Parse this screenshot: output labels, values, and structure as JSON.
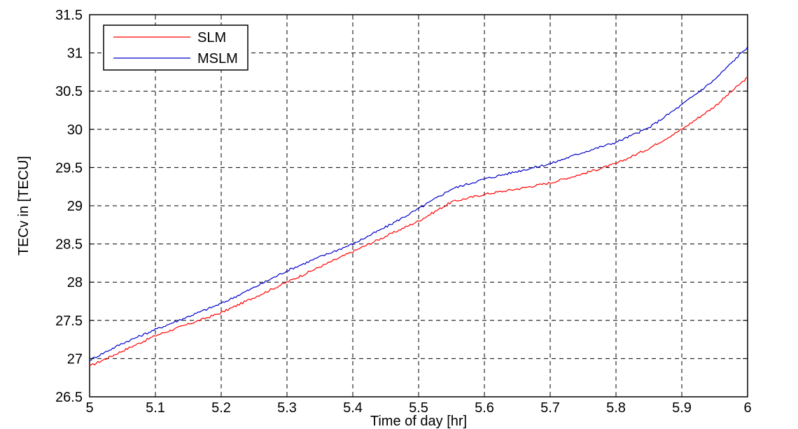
{
  "chart_data": {
    "type": "line",
    "title": "",
    "xlabel": "Time of day   [hr]",
    "ylabel": "TECv in [TECU]",
    "xlim": [
      5,
      6
    ],
    "ylim": [
      26.5,
      31.5
    ],
    "x_ticks": [
      5,
      5.1,
      5.2,
      5.3,
      5.4,
      5.5,
      5.6,
      5.7,
      5.8,
      5.9,
      6
    ],
    "x_tick_labels": [
      "5",
      "5.1",
      "5.2",
      "5.3",
      "5.4",
      "5.5",
      "5.6",
      "5.7",
      "5.8",
      "5.9",
      "6"
    ],
    "y_ticks": [
      26.5,
      27,
      27.5,
      28,
      28.5,
      29,
      29.5,
      30,
      30.5,
      31,
      31.5
    ],
    "y_tick_labels": [
      "26.5",
      "27",
      "27.5",
      "28",
      "28.5",
      "29",
      "29.5",
      "30",
      "30.5",
      "31",
      "31.5"
    ],
    "grid": true,
    "legend_position": "top-left",
    "series": [
      {
        "name": "SLM",
        "color": "#ff0000",
        "x": [
          5.0,
          5.05,
          5.1,
          5.15,
          5.2,
          5.25,
          5.3,
          5.35,
          5.4,
          5.45,
          5.5,
          5.55,
          5.6,
          5.65,
          5.7,
          5.75,
          5.8,
          5.85,
          5.9,
          5.95,
          6.0
        ],
        "y": [
          26.9,
          27.1,
          27.3,
          27.45,
          27.6,
          27.8,
          28.0,
          28.2,
          28.4,
          28.6,
          28.8,
          29.05,
          29.15,
          29.22,
          29.3,
          29.42,
          29.55,
          29.75,
          30.0,
          30.3,
          30.68
        ]
      },
      {
        "name": "MSLM",
        "color": "#0000cc",
        "x": [
          5.0,
          5.05,
          5.1,
          5.15,
          5.2,
          5.25,
          5.3,
          5.35,
          5.4,
          5.45,
          5.5,
          5.55,
          5.6,
          5.65,
          5.7,
          5.75,
          5.8,
          5.85,
          5.9,
          5.95,
          6.0
        ],
        "y": [
          26.98,
          27.2,
          27.38,
          27.55,
          27.72,
          27.93,
          28.15,
          28.33,
          28.5,
          28.72,
          28.96,
          29.22,
          29.35,
          29.45,
          29.55,
          29.7,
          29.83,
          30.02,
          30.32,
          30.65,
          31.08
        ]
      }
    ]
  }
}
